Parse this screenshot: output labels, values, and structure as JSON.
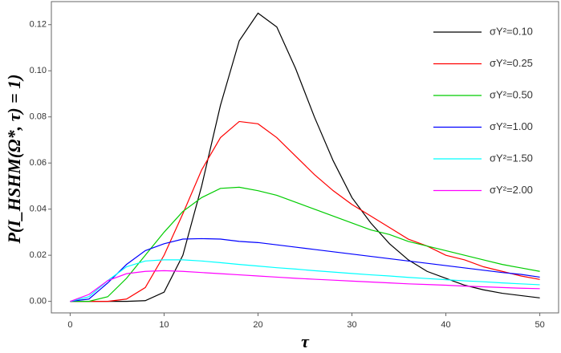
{
  "chart_data": {
    "type": "line",
    "xlabel": "τ",
    "ylabel": "P(I_HSHM(Ω*, τ) = 1)",
    "x": [
      0,
      2,
      4,
      6,
      8,
      10,
      12,
      14,
      16,
      18,
      20,
      22,
      24,
      26,
      28,
      30,
      32,
      34,
      36,
      38,
      40,
      42,
      44,
      46,
      48,
      50
    ],
    "series": [
      {
        "name": "σY²=0.10",
        "color": "#000000",
        "values": [
          0,
          0,
          0,
          0,
          0.0003,
          0.004,
          0.02,
          0.05,
          0.085,
          0.113,
          0.125,
          0.119,
          0.101,
          0.08,
          0.061,
          0.045,
          0.034,
          0.025,
          0.018,
          0.013,
          0.01,
          0.007,
          0.005,
          0.0035,
          0.0025,
          0.0015
        ]
      },
      {
        "name": "σY²=0.25",
        "color": "#ff0000",
        "values": [
          0,
          0,
          0,
          0.001,
          0.006,
          0.02,
          0.038,
          0.057,
          0.071,
          0.078,
          0.077,
          0.071,
          0.063,
          0.055,
          0.048,
          0.042,
          0.037,
          0.032,
          0.027,
          0.024,
          0.02,
          0.018,
          0.015,
          0.013,
          0.011,
          0.0095
        ]
      },
      {
        "name": "σY²=0.50",
        "color": "#00cc00",
        "values": [
          0,
          0,
          0.002,
          0.01,
          0.02,
          0.03,
          0.039,
          0.045,
          0.049,
          0.0495,
          0.048,
          0.046,
          0.043,
          0.04,
          0.037,
          0.034,
          0.031,
          0.029,
          0.026,
          0.024,
          0.022,
          0.02,
          0.018,
          0.016,
          0.0145,
          0.013
        ]
      },
      {
        "name": "σY²=1.00",
        "color": "#0000ff",
        "values": [
          0,
          0.001,
          0.008,
          0.016,
          0.022,
          0.025,
          0.027,
          0.0272,
          0.027,
          0.026,
          0.0255,
          0.0245,
          0.0235,
          0.0225,
          0.0215,
          0.0205,
          0.0195,
          0.0185,
          0.0175,
          0.0165,
          0.0155,
          0.0145,
          0.0135,
          0.0125,
          0.0117,
          0.0105
        ]
      },
      {
        "name": "σY²=1.50",
        "color": "#00ffff",
        "values": [
          0,
          0.002,
          0.009,
          0.015,
          0.0175,
          0.018,
          0.018,
          0.0175,
          0.0168,
          0.016,
          0.0153,
          0.0146,
          0.014,
          0.0133,
          0.0127,
          0.0121,
          0.0115,
          0.011,
          0.0104,
          0.0099,
          0.0094,
          0.0089,
          0.0085,
          0.008,
          0.0076,
          0.0072
        ]
      },
      {
        "name": "σY²=2.00",
        "color": "#ff00ff",
        "values": [
          0,
          0.003,
          0.009,
          0.012,
          0.013,
          0.0133,
          0.013,
          0.0125,
          0.012,
          0.0115,
          0.011,
          0.0105,
          0.01,
          0.0096,
          0.0092,
          0.0088,
          0.0084,
          0.008,
          0.0076,
          0.0073,
          0.007,
          0.0066,
          0.0063,
          0.006,
          0.0057,
          0.0055
        ]
      }
    ],
    "xlim": [
      -2,
      52
    ],
    "ylim": [
      -0.005,
      0.13
    ],
    "xticks": [
      0,
      10,
      20,
      30,
      40,
      50
    ],
    "yticks": [
      {
        "value": 0,
        "label": "0.00"
      },
      {
        "value": 0.02,
        "label": "0.02"
      },
      {
        "value": 0.04,
        "label": "0.04"
      },
      {
        "value": 0.06,
        "label": "0.06"
      },
      {
        "value": 0.08,
        "label": "0.08"
      },
      {
        "value": 0.1,
        "label": "0.10"
      },
      {
        "value": 0.12,
        "label": "0.12"
      }
    ],
    "legend": "top-right"
  }
}
